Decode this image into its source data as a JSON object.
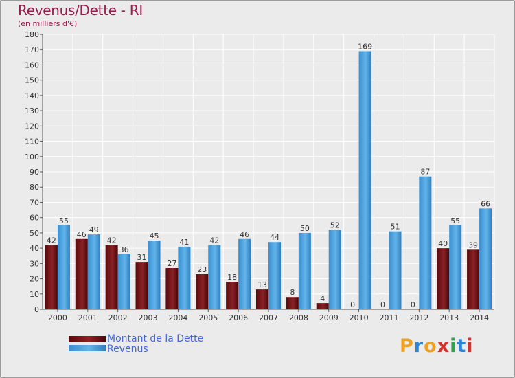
{
  "title": "Revenus/Dette - RI",
  "subtitle": "(en milliers d'€)",
  "logo": {
    "text": "Proxiti",
    "letters": [
      {
        "ch": "P",
        "color": "#f0a020"
      },
      {
        "ch": "r",
        "color": "#2a86d8"
      },
      {
        "ch": "o",
        "color": "#f0a020"
      },
      {
        "ch": "x",
        "color": "#d8302a"
      },
      {
        "ch": "i",
        "color": "#2aa84a"
      },
      {
        "ch": "t",
        "color": "#2a86d8"
      },
      {
        "ch": "i",
        "color": "#d8302a"
      }
    ]
  },
  "legend": [
    {
      "name": "Montant de la Dette",
      "color": "#6e0f12"
    },
    {
      "name": "Revenus",
      "color": "#4aa3e0"
    }
  ],
  "chart_data": {
    "type": "bar",
    "title": "Revenus/Dette - RI",
    "ylabel": "(en milliers d'€)",
    "xlabel": "",
    "ylim": [
      0,
      180
    ],
    "ytick_step": 10,
    "grid": true,
    "categories": [
      "2000",
      "2001",
      "2002",
      "2003",
      "2004",
      "2005",
      "2006",
      "2007",
      "2008",
      "2009",
      "2010",
      "2011",
      "2012",
      "2013",
      "2014"
    ],
    "series": [
      {
        "name": "Montant de la Dette",
        "color": "#6e0f12",
        "values": [
          42,
          46,
          42,
          31,
          27,
          23,
          18,
          13,
          8,
          4,
          0,
          0,
          0,
          40,
          39
        ]
      },
      {
        "name": "Revenus",
        "color": "#4aa3e0",
        "values": [
          55,
          49,
          36,
          45,
          41,
          42,
          46,
          44,
          50,
          52,
          169,
          51,
          87,
          55,
          66
        ]
      }
    ]
  }
}
